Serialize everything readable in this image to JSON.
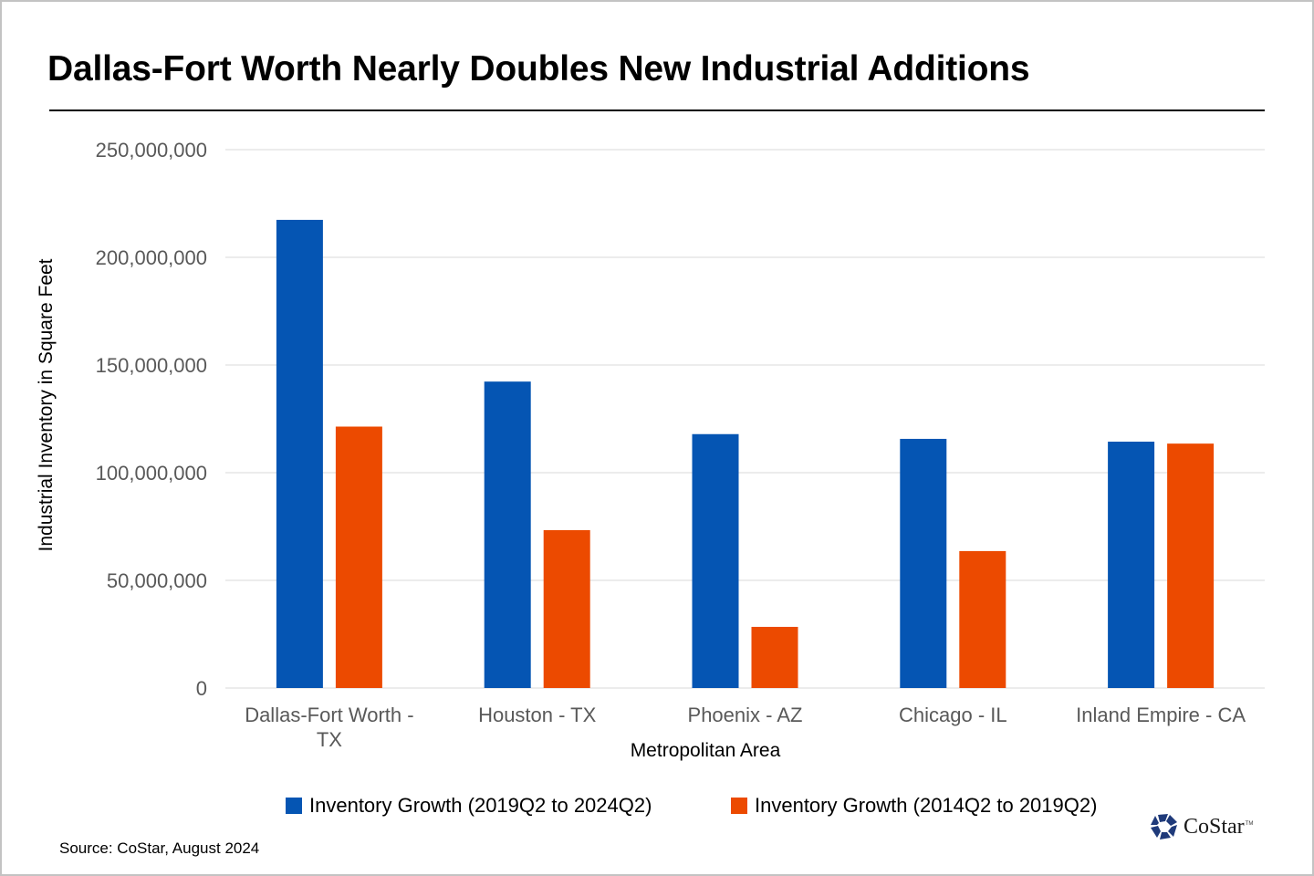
{
  "colors": {
    "series_1": "#0555b3",
    "series_2": "#ec4a00",
    "gridline": "#d9d9d9",
    "tick_text": "#595959"
  },
  "chart_data": {
    "type": "bar",
    "title": "Dallas-Fort Worth Nearly Doubles New Industrial Additions",
    "xlabel": "Metropolitan Area",
    "ylabel": "Industrial Inventory in Square Feet",
    "categories": [
      "Dallas-Fort Worth - TX",
      "Houston - TX",
      "Phoenix - AZ",
      "Chicago - IL",
      "Inland Empire - CA"
    ],
    "category_lines": [
      [
        "Dallas-Fort Worth -",
        "TX"
      ],
      [
        "Houston - TX"
      ],
      [
        "Phoenix - AZ"
      ],
      [
        "Chicago - IL"
      ],
      [
        "Inland Empire - CA"
      ]
    ],
    "series": [
      {
        "name": "Inventory Growth (2019Q2 to 2024Q2)",
        "values": [
          217400000,
          142300000,
          117900000,
          115700000,
          114400000
        ]
      },
      {
        "name": "Inventory Growth (2014Q2 to 2019Q2)",
        "values": [
          121400000,
          73300000,
          28400000,
          63600000,
          113500000
        ]
      }
    ],
    "ylim": [
      0,
      250000000
    ],
    "yticks": [
      0,
      50000000,
      100000000,
      150000000,
      200000000,
      250000000
    ],
    "ytick_labels": [
      "0",
      "50,000,000",
      "100,000,000",
      "150,000,000",
      "200,000,000",
      "250,000,000"
    ],
    "grid": true,
    "legend_position": "bottom"
  },
  "footer": {
    "source": "Source: CoStar, August 2024",
    "logo_text": "CoStar",
    "logo_tm": "TM"
  }
}
